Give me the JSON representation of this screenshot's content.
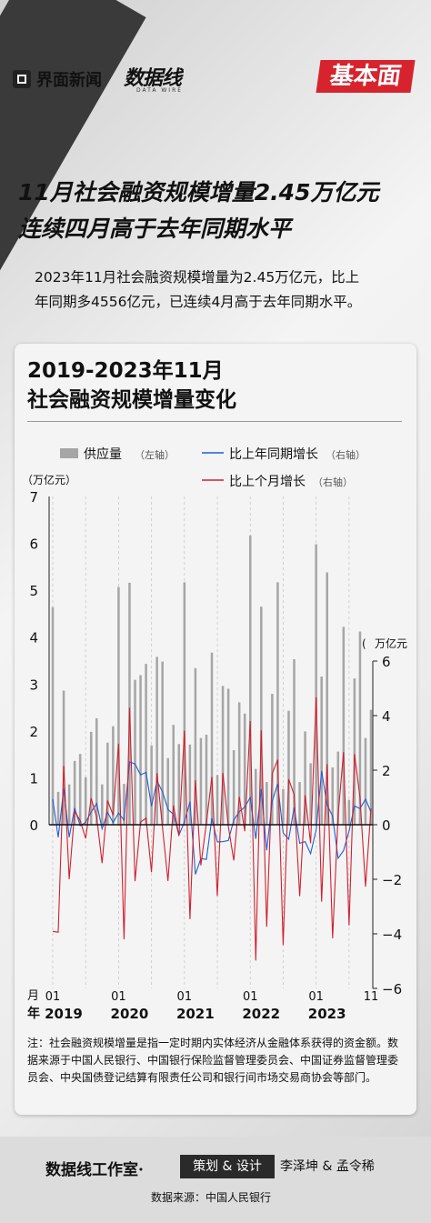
{
  "brand": {
    "name": "界面新闻",
    "datawire": "数据线",
    "datawire_en": "DATA WIRE",
    "badge": "基本面"
  },
  "headline": {
    "line1": "11月社会融资规模增量2.45万亿元",
    "line2": "连续四月高于去年同期水平"
  },
  "summary": {
    "line1": "2023年11月社会融资规模增量为2.45万亿元，比上",
    "line2": "年同期多4556亿元，已连续4月高于去年同期水平。"
  },
  "chart_title": {
    "line1": "2019-2023年11月",
    "line2": "社会融资规模增量变化"
  },
  "legend": {
    "supply": "供应量",
    "supply_axis": "（左轴）",
    "yoy": "比上年同期增长",
    "yoy_axis": "（右轴）",
    "mom": "比上个月增长",
    "mom_axis": "（右轴）"
  },
  "colors": {
    "bar": "#a6a6a6",
    "yoy": "#1f5fd6",
    "mom": "#d0202e",
    "accent": "#d7232d"
  },
  "chart_data": {
    "type": "bar",
    "left_unit": "（万亿元）",
    "right_unit": "万亿元",
    "x_label_month": "月",
    "x_label_year": "年",
    "ylim_left": [
      0,
      7
    ],
    "ylim_right": [
      -6,
      6
    ],
    "yticks_left": [
      "0",
      "1",
      "2",
      "3",
      "4",
      "5",
      "6",
      "7"
    ],
    "yticks_right": [
      "−6",
      "−4",
      "−2",
      "0",
      "2",
      "4",
      "6"
    ],
    "month_ticks": [
      "01",
      "01",
      "01",
      "01",
      "01",
      "11"
    ],
    "year_ticks": [
      "2019",
      "2020",
      "2021",
      "2022",
      "2023"
    ],
    "supply": [
      4.64,
      0.7,
      2.86,
      0.86,
      1.36,
      1.51,
      1.01,
      1.98,
      2.27,
      0.86,
      1.75,
      2.1,
      5.07,
      0.87,
      5.16,
      3.09,
      3.19,
      3.43,
      1.69,
      3.58,
      3.48,
      1.42,
      2.13,
      1.72,
      5.17,
      1.71,
      3.34,
      1.85,
      1.92,
      3.67,
      1.06,
      2.96,
      2.9,
      1.59,
      2.61,
      2.37,
      6.17,
      1.19,
      4.65,
      0.91,
      2.79,
      5.17,
      0.76,
      2.43,
      3.53,
      0.91,
      1.99,
      1.31,
      5.98,
      3.16,
      5.38,
      1.22,
      1.56,
      4.22,
      0.53,
      3.12,
      4.12,
      1.85,
      2.45
    ],
    "yoy": [
      0.94,
      -0.46,
      1.32,
      -0.46,
      0.61,
      -0.04,
      0.09,
      0.46,
      0.78,
      -0.15,
      0.45,
      0.08,
      0.43,
      0.17,
      2.3,
      2.23,
      1.83,
      1.92,
      0.68,
      1.6,
      1.21,
      0.56,
      0.38,
      -0.38,
      0.1,
      0.84,
      -1.82,
      -1.24,
      -1.27,
      0.24,
      -0.63,
      -0.62,
      -0.58,
      0.17,
      0.48,
      0.65,
      1.0,
      -0.52,
      1.31,
      -0.94,
      0.87,
      1.5,
      -0.3,
      -0.53,
      0.63,
      -0.68,
      -0.62,
      -1.06,
      -0.19,
      1.97,
      0.73,
      0.31,
      -1.23,
      -0.95,
      -0.23,
      0.69,
      0.59,
      0.94,
      0.46
    ],
    "mom": [
      -3.91,
      -3.94,
      2.16,
      -2.0,
      0.5,
      0.15,
      -0.5,
      0.97,
      0.29,
      -1.41,
      0.89,
      0.35,
      2.97,
      -4.2,
      4.29,
      -2.07,
      0.1,
      0.24,
      -1.74,
      1.89,
      -0.1,
      -2.06,
      0.71,
      -0.41,
      3.45,
      -3.46,
      1.63,
      -1.49,
      0.07,
      1.75,
      -2.61,
      1.9,
      -0.06,
      -1.31,
      1.02,
      -0.24,
      3.8,
      -4.98,
      3.46,
      -3.74,
      1.88,
      2.38,
      -4.41,
      1.67,
      1.1,
      -2.62,
      1.08,
      -0.68,
      4.67,
      -2.82,
      2.22,
      -4.16,
      0.34,
      2.66,
      -3.69,
      2.59,
      1.0,
      -2.27,
      0.6
    ]
  },
  "note": "注：社会融资规模增量是指一定时期内实体经济从金融体系获得的资金额。数据来源于中国人民银行、中国银行保险监督管理委员会、中国证券监督管理委员会、中央国债登记结算有限责任公司和银行间市场交易商协会等部门。",
  "footer": {
    "studio": "数据线工作室·",
    "role": "策划 & 设计",
    "names": "李泽坤 & 孟令稀",
    "source": "数据来源：中国人民银行"
  }
}
